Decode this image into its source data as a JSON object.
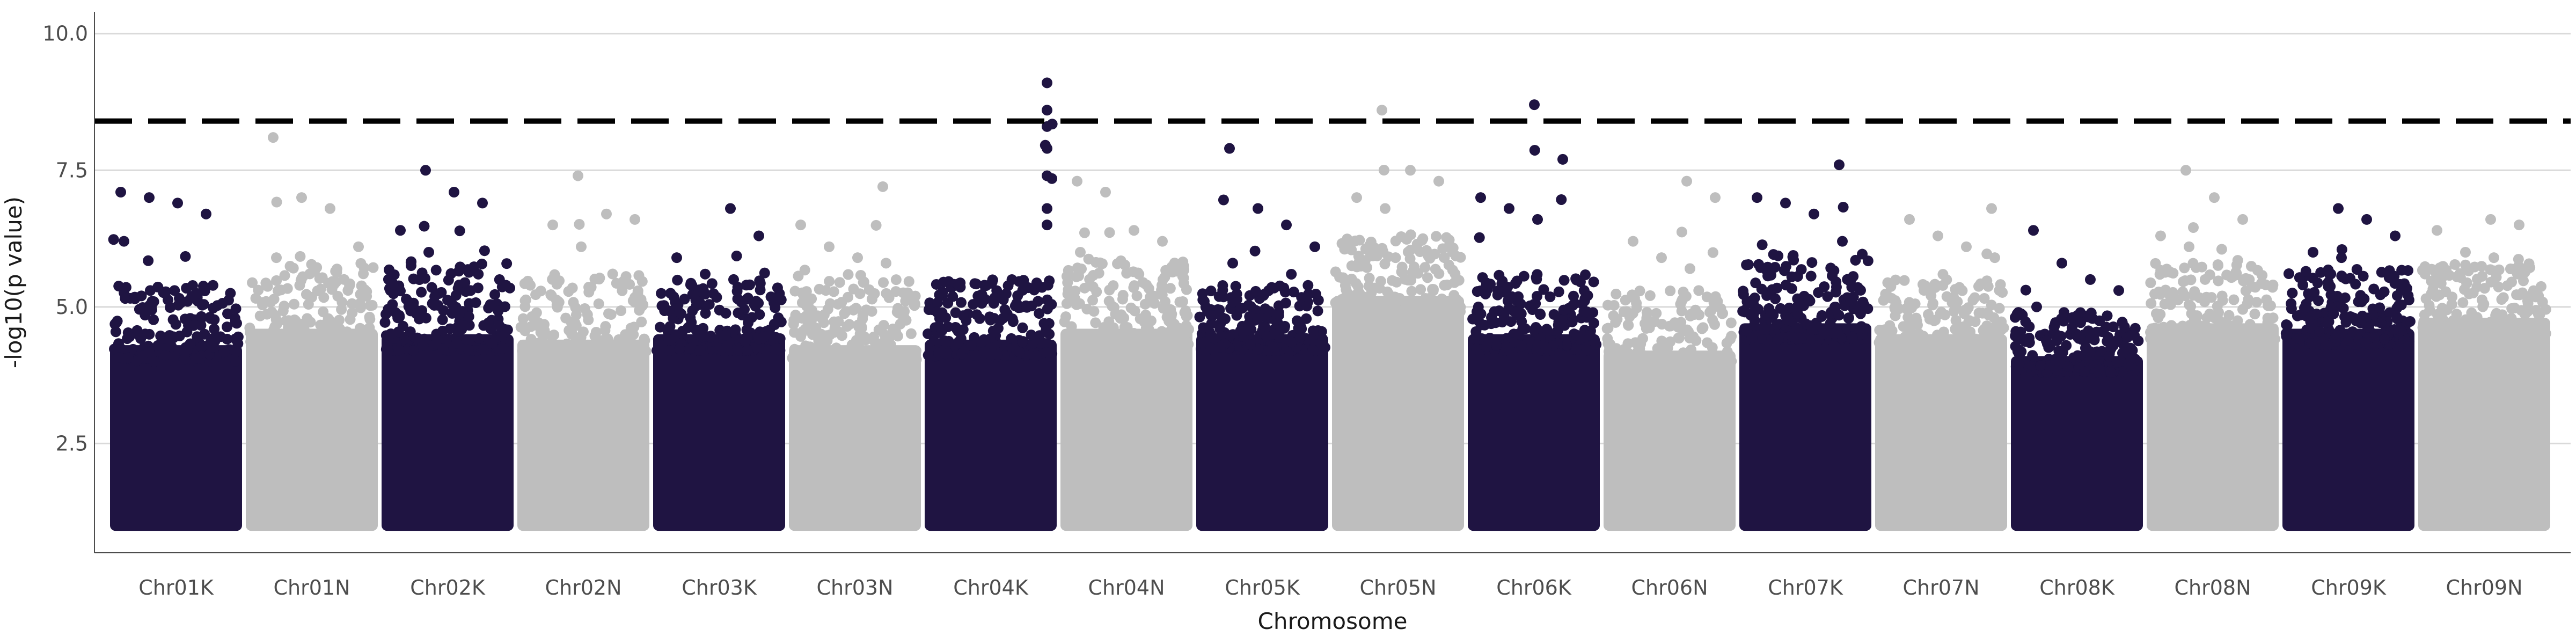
{
  "chart_data": {
    "type": "scatter",
    "subtype": "manhattan",
    "title": "",
    "xlabel": "Chromosome",
    "ylabel": "-log10(p value)",
    "ylim": [
      0.5,
      10.4
    ],
    "yticks": [
      "2.5",
      "5.0",
      "7.5",
      "10.0"
    ],
    "grid": "horizontal",
    "legend": "none",
    "threshold": 8.4,
    "colors": {
      "dark": "#1f1442",
      "light": "#bebebe",
      "threshold": "#000000",
      "grid": "#d9d9d9"
    },
    "categories": [
      "Chr01K",
      "Chr01N",
      "Chr02K",
      "Chr02N",
      "Chr03K",
      "Chr03N",
      "Chr04K",
      "Chr04N",
      "Chr05K",
      "Chr05N",
      "Chr06K",
      "Chr06N",
      "Chr07K",
      "Chr07N",
      "Chr08K",
      "Chr08N",
      "Chr09K",
      "Chr09N"
    ],
    "series": [
      {
        "category": "Chr01K",
        "color": "dark",
        "dense_top": 4.3,
        "spread_top": 5.4,
        "peaks": [
          7.1,
          7.0,
          6.9,
          6.7,
          6.2
        ]
      },
      {
        "category": "Chr01N",
        "color": "light",
        "dense_top": 4.6,
        "spread_top": 5.8,
        "peaks": [
          8.1,
          7.0,
          6.8,
          6.1,
          5.9
        ]
      },
      {
        "category": "Chr02K",
        "color": "dark",
        "dense_top": 4.5,
        "spread_top": 5.9,
        "peaks": [
          7.5,
          7.1,
          6.9,
          6.4,
          6.0
        ]
      },
      {
        "category": "Chr02N",
        "color": "light",
        "dense_top": 4.4,
        "spread_top": 5.6,
        "peaks": [
          7.4,
          6.7,
          6.6,
          6.5,
          6.1
        ]
      },
      {
        "category": "Chr03K",
        "color": "dark",
        "dense_top": 4.5,
        "spread_top": 5.5,
        "peaks": [
          6.8,
          6.3,
          5.9,
          5.6,
          5.5
        ]
      },
      {
        "category": "Chr03N",
        "color": "light",
        "dense_top": 4.3,
        "spread_top": 5.6,
        "peaks": [
          7.2,
          6.5,
          6.1,
          5.9,
          5.8
        ]
      },
      {
        "category": "Chr04K",
        "color": "dark",
        "dense_top": 4.4,
        "spread_top": 5.5,
        "peaks": [
          9.1,
          8.6,
          8.3,
          7.9,
          7.4,
          6.8,
          6.5
        ]
      },
      {
        "category": "Chr04N",
        "color": "light",
        "dense_top": 4.6,
        "spread_top": 5.9,
        "peaks": [
          7.3,
          7.1,
          6.4,
          6.2,
          6.0
        ]
      },
      {
        "category": "Chr05K",
        "color": "dark",
        "dense_top": 4.5,
        "spread_top": 5.4,
        "peaks": [
          7.9,
          6.8,
          6.5,
          6.1,
          5.8
        ]
      },
      {
        "category": "Chr05N",
        "color": "light",
        "dense_top": 5.2,
        "spread_top": 6.3,
        "peaks": [
          8.6,
          7.5,
          7.3,
          7.0,
          6.8
        ]
      },
      {
        "category": "Chr06K",
        "color": "dark",
        "dense_top": 4.5,
        "spread_top": 5.6,
        "peaks": [
          8.7,
          7.7,
          7.0,
          6.8,
          6.6
        ]
      },
      {
        "category": "Chr06N",
        "color": "light",
        "dense_top": 4.2,
        "spread_top": 5.3,
        "peaks": [
          7.3,
          7.0,
          6.2,
          5.9,
          5.7
        ]
      },
      {
        "category": "Chr07K",
        "color": "dark",
        "dense_top": 4.7,
        "spread_top": 6.0,
        "peaks": [
          7.6,
          7.0,
          6.9,
          6.7,
          6.2
        ]
      },
      {
        "category": "Chr07N",
        "color": "light",
        "dense_top": 4.5,
        "spread_top": 5.5,
        "peaks": [
          6.8,
          6.6,
          6.3,
          6.1,
          5.9
        ]
      },
      {
        "category": "Chr08K",
        "color": "dark",
        "dense_top": 4.1,
        "spread_top": 4.9,
        "peaks": [
          6.4,
          5.8,
          5.5,
          5.3,
          5.0
        ]
      },
      {
        "category": "Chr08N",
        "color": "light",
        "dense_top": 4.7,
        "spread_top": 5.8,
        "peaks": [
          7.5,
          7.0,
          6.6,
          6.3,
          6.1
        ]
      },
      {
        "category": "Chr09K",
        "color": "dark",
        "dense_top": 4.6,
        "spread_top": 5.7,
        "peaks": [
          6.8,
          6.6,
          6.3,
          6.0,
          5.9
        ]
      },
      {
        "category": "Chr09N",
        "color": "light",
        "dense_top": 4.8,
        "spread_top": 5.8,
        "peaks": [
          6.6,
          6.5,
          6.4,
          6.0,
          5.9
        ]
      }
    ]
  }
}
